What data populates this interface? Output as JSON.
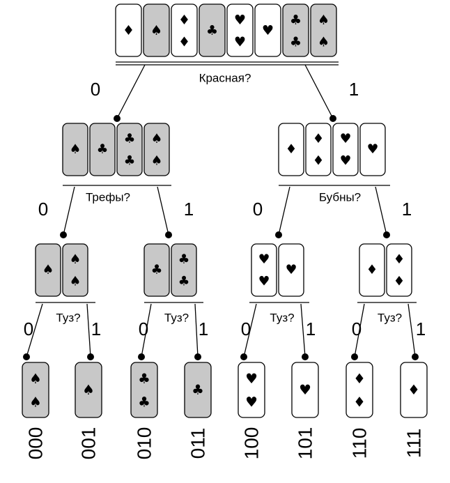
{
  "colors": {
    "red_card": "#ffffff",
    "black_card": "#c8c8c8",
    "ink": "#000000"
  },
  "root": {
    "question": "Красная?",
    "cards": [
      {
        "suit": "diamond",
        "rank": "1",
        "color": "red"
      },
      {
        "suit": "spade",
        "rank": "1",
        "color": "black"
      },
      {
        "suit": "diamond",
        "rank": "2",
        "color": "red"
      },
      {
        "suit": "club",
        "rank": "1",
        "color": "black"
      },
      {
        "suit": "heart",
        "rank": "2",
        "color": "red"
      },
      {
        "suit": "heart",
        "rank": "1",
        "color": "red"
      },
      {
        "suit": "club",
        "rank": "2",
        "color": "black"
      },
      {
        "suit": "spade",
        "rank": "2",
        "color": "black"
      }
    ],
    "branch_left": "0",
    "branch_right": "1"
  },
  "level1": [
    {
      "question": "Трефы?",
      "cards": [
        {
          "suit": "spade",
          "rank": "1",
          "color": "black"
        },
        {
          "suit": "club",
          "rank": "1",
          "color": "black"
        },
        {
          "suit": "club",
          "rank": "2",
          "color": "black"
        },
        {
          "suit": "spade",
          "rank": "2",
          "color": "black"
        }
      ],
      "branch_left": "0",
      "branch_right": "1"
    },
    {
      "question": "Бубны?",
      "cards": [
        {
          "suit": "diamond",
          "rank": "1",
          "color": "red"
        },
        {
          "suit": "diamond",
          "rank": "2",
          "color": "red"
        },
        {
          "suit": "heart",
          "rank": "2",
          "color": "red"
        },
        {
          "suit": "heart",
          "rank": "1",
          "color": "red"
        }
      ],
      "branch_left": "0",
      "branch_right": "1"
    }
  ],
  "level2": [
    {
      "question": "Туз?",
      "cards": [
        {
          "suit": "spade",
          "rank": "1",
          "color": "black"
        },
        {
          "suit": "spade",
          "rank": "2",
          "color": "black"
        }
      ],
      "branch_left": "0",
      "branch_right": "1"
    },
    {
      "question": "Туз?",
      "cards": [
        {
          "suit": "club",
          "rank": "1",
          "color": "black"
        },
        {
          "suit": "club",
          "rank": "2",
          "color": "black"
        }
      ],
      "branch_left": "0",
      "branch_right": "1"
    },
    {
      "question": "Туз?",
      "cards": [
        {
          "suit": "heart",
          "rank": "2",
          "color": "red"
        },
        {
          "suit": "heart",
          "rank": "1",
          "color": "red"
        }
      ],
      "branch_left": "0",
      "branch_right": "1"
    },
    {
      "question": "Туз?",
      "cards": [
        {
          "suit": "diamond",
          "rank": "1",
          "color": "red"
        },
        {
          "suit": "diamond",
          "rank": "2",
          "color": "red"
        }
      ],
      "branch_left": "0",
      "branch_right": "1"
    }
  ],
  "leaves": [
    {
      "code": "000",
      "card": {
        "suit": "spade",
        "rank": "2",
        "color": "black"
      }
    },
    {
      "code": "001",
      "card": {
        "suit": "spade",
        "rank": "1",
        "color": "black"
      }
    },
    {
      "code": "010",
      "card": {
        "suit": "club",
        "rank": "2",
        "color": "black"
      }
    },
    {
      "code": "011",
      "card": {
        "suit": "club",
        "rank": "1",
        "color": "black"
      }
    },
    {
      "code": "100",
      "card": {
        "suit": "heart",
        "rank": "2",
        "color": "red"
      }
    },
    {
      "code": "101",
      "card": {
        "suit": "heart",
        "rank": "1",
        "color": "red"
      }
    },
    {
      "code": "110",
      "card": {
        "suit": "diamond",
        "rank": "2",
        "color": "red"
      }
    },
    {
      "code": "111",
      "card": {
        "suit": "diamond",
        "rank": "1",
        "color": "red"
      }
    }
  ]
}
